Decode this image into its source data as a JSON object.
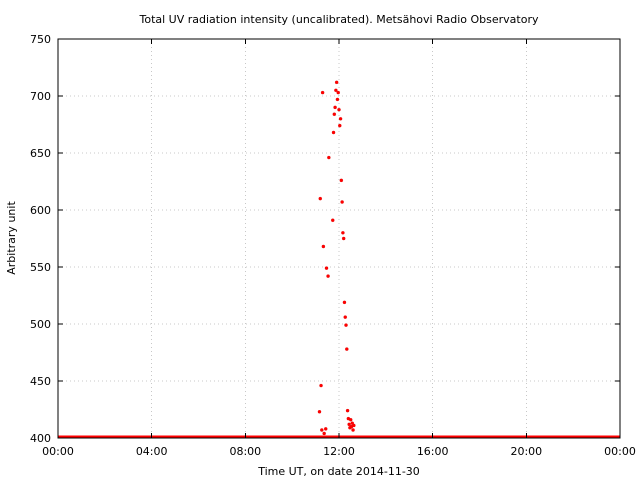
{
  "chart_data": {
    "type": "scatter",
    "title": "Total UV radiation intensity (uncalibrated). Metsähovi Radio Observatory",
    "xlabel": "Time UT, on date 2014-11-30",
    "ylabel": "Arbitrary unit",
    "xlim": [
      "00:00",
      "24:00"
    ],
    "ylim": [
      400,
      750
    ],
    "grid": true,
    "point_color": "#ff0000",
    "x_ticks": [
      "00:00",
      "04:00",
      "08:00",
      "12:00",
      "16:00",
      "20:00",
      "00:00"
    ],
    "y_ticks": [
      400,
      450,
      500,
      550,
      600,
      650,
      700,
      750
    ],
    "series": [
      {
        "points": [
          {
            "time": "11:10",
            "value": 423
          },
          {
            "time": "11:12",
            "value": 610
          },
          {
            "time": "11:14",
            "value": 446
          },
          {
            "time": "11:16",
            "value": 407
          },
          {
            "time": "11:18",
            "value": 703
          },
          {
            "time": "11:20",
            "value": 568
          },
          {
            "time": "11:22",
            "value": 404
          },
          {
            "time": "11:26",
            "value": 408
          },
          {
            "time": "11:28",
            "value": 549
          },
          {
            "time": "11:32",
            "value": 542
          },
          {
            "time": "11:34",
            "value": 646
          },
          {
            "time": "11:44",
            "value": 591
          },
          {
            "time": "11:46",
            "value": 668
          },
          {
            "time": "11:48",
            "value": 684
          },
          {
            "time": "11:50",
            "value": 690
          },
          {
            "time": "11:52",
            "value": 705
          },
          {
            "time": "11:54",
            "value": 712
          },
          {
            "time": "11:56",
            "value": 697
          },
          {
            "time": "11:58",
            "value": 703
          },
          {
            "time": "12:00",
            "value": 688
          },
          {
            "time": "12:02",
            "value": 674
          },
          {
            "time": "12:04",
            "value": 680
          },
          {
            "time": "12:06",
            "value": 626
          },
          {
            "time": "12:08",
            "value": 607
          },
          {
            "time": "12:10",
            "value": 580
          },
          {
            "time": "12:12",
            "value": 575
          },
          {
            "time": "12:14",
            "value": 519
          },
          {
            "time": "12:16",
            "value": 506
          },
          {
            "time": "12:18",
            "value": 499
          },
          {
            "time": "12:20",
            "value": 478
          },
          {
            "time": "12:22",
            "value": 424
          },
          {
            "time": "12:24",
            "value": 417
          },
          {
            "time": "12:26",
            "value": 412
          },
          {
            "time": "12:28",
            "value": 409
          },
          {
            "time": "12:30",
            "value": 416
          },
          {
            "time": "12:32",
            "value": 410
          },
          {
            "time": "12:34",
            "value": 413
          },
          {
            "time": "12:36",
            "value": 407
          },
          {
            "time": "12:38",
            "value": 411
          }
        ],
        "baseline_value": 401
      }
    ]
  }
}
